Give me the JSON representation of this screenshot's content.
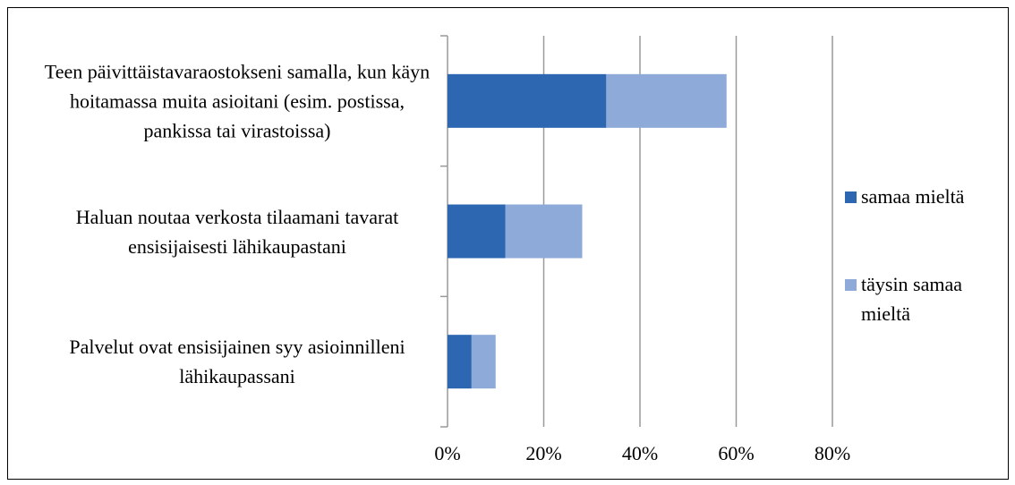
{
  "chart_data": {
    "type": "bar",
    "orientation": "horizontal",
    "stacked": true,
    "categories": [
      "Teen päivittäistavaraostokseni samalla, kun käyn hoitamassa muita asioitani (esim. postissa, pankissa tai virastoissa)",
      "Haluan noutaa verkosta tilaamani tavarat ensisijaisesti lähikaupastani",
      "Palvelut ovat ensisijainen syy asioinnilleni lähikaupassani"
    ],
    "series": [
      {
        "name": "samaa mieltä",
        "color": "#2e67b1",
        "values": [
          33,
          12,
          5
        ]
      },
      {
        "name": "täysin samaa mieltä",
        "color": "#8eaad9",
        "values": [
          25,
          16,
          5
        ]
      }
    ],
    "xlim": [
      0,
      80
    ],
    "xticks": [
      {
        "value": 0,
        "label": "0%"
      },
      {
        "value": 20,
        "label": "20%"
      },
      {
        "value": 40,
        "label": "40%"
      },
      {
        "value": 60,
        "label": "60%"
      },
      {
        "value": 80,
        "label": "80%"
      }
    ],
    "grid": true,
    "legend": "right"
  }
}
